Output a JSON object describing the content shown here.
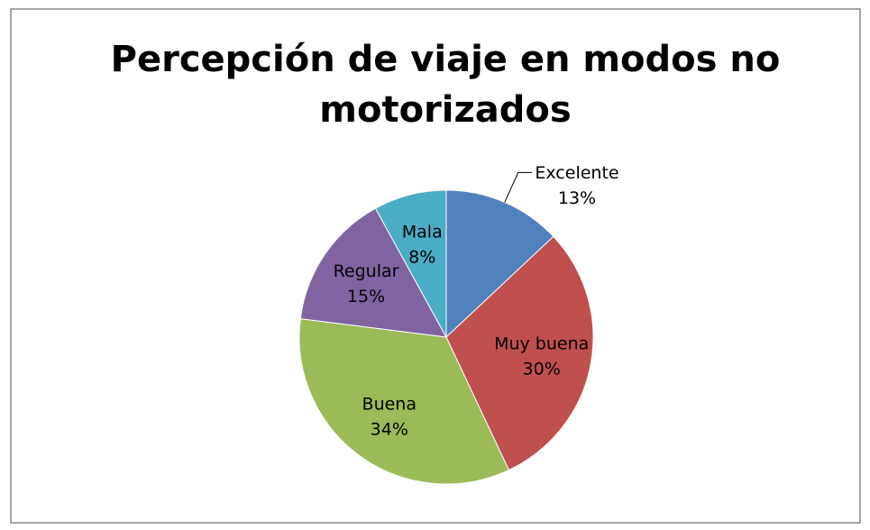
{
  "chart_data": {
    "type": "pie",
    "title": [
      "Percepción de viaje en modos no",
      "motorizados"
    ],
    "categories": [
      "Excelente",
      "Muy buena",
      "Buena",
      "Regular",
      "Mala"
    ],
    "values": [
      13,
      30,
      34,
      15,
      8
    ],
    "value_labels": [
      "13%",
      "30%",
      "34%",
      "15%",
      "8%"
    ],
    "colors": [
      "#4f81bd",
      "#c0504d",
      "#9bbb59",
      "#8064a2",
      "#4bacc6"
    ]
  }
}
